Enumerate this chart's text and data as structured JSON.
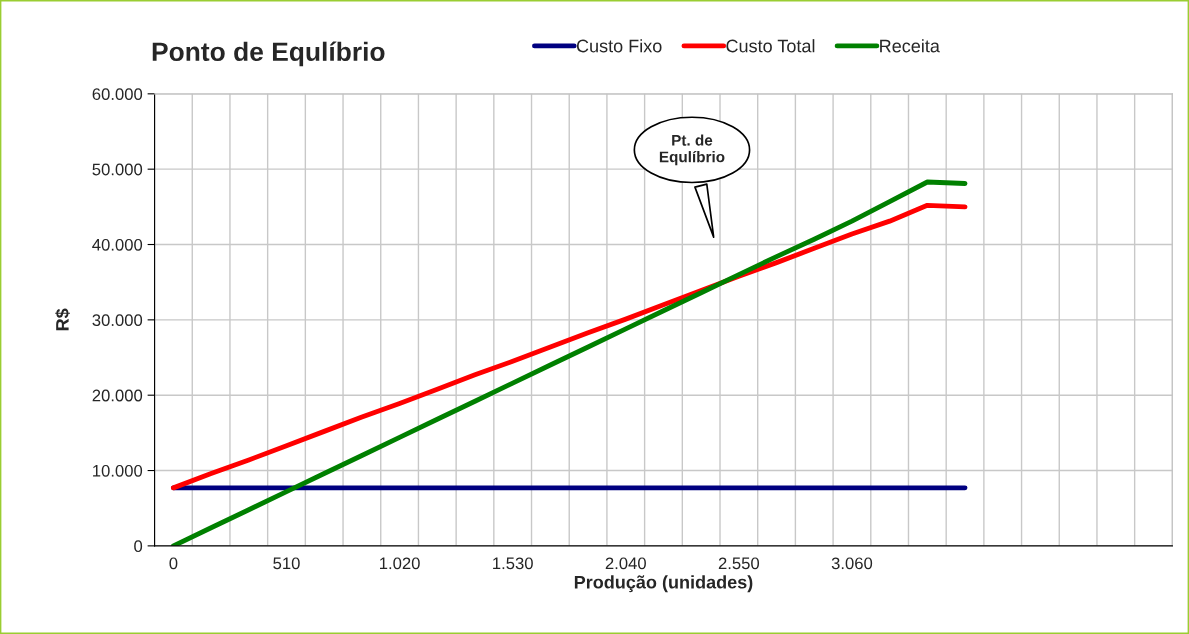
{
  "chart_data": {
    "type": "line",
    "title": "Ponto de Equlíbrio",
    "xlabel": "Produção (unidades)",
    "ylabel": "R$",
    "categories": [
      "0",
      null,
      null,
      "510",
      null,
      null,
      "1.020",
      null,
      null,
      "1.530",
      null,
      null,
      "2.040",
      null,
      null,
      "2.550",
      null,
      null,
      "3.060",
      null,
      null,
      null,
      null,
      null,
      null,
      null,
      null
    ],
    "series": [
      {
        "name": "Custo Fixo",
        "color": "#000080",
        "values": [
          7700,
          7700,
          7700,
          7700,
          7700,
          7700,
          7700,
          7700,
          7700,
          7700,
          7700,
          7700,
          7700,
          7700,
          7700,
          7700,
          7700,
          7700,
          7700,
          7700,
          7700,
          7700,
          null,
          null,
          null,
          null,
          null
        ]
      },
      {
        "name": "Custo Total",
        "color": "#ff0000",
        "values": [
          7700,
          9600,
          11400,
          13300,
          15200,
          17100,
          18900,
          20800,
          22700,
          24500,
          26400,
          28300,
          30100,
          32000,
          33900,
          35800,
          37600,
          39500,
          41400,
          43100,
          45200,
          45000,
          null,
          null,
          null,
          null,
          null
        ]
      },
      {
        "name": "Receita",
        "color": "#008000",
        "values": [
          0,
          2400,
          4800,
          7200,
          9600,
          12000,
          14400,
          16800,
          19200,
          21600,
          24000,
          26400,
          28800,
          31200,
          33600,
          36000,
          38400,
          40700,
          43100,
          45700,
          48300,
          48100,
          null,
          null,
          null,
          null,
          null
        ]
      }
    ],
    "ylim": [
      0,
      60000
    ],
    "yticks": [
      {
        "value": 0,
        "label": "0"
      },
      {
        "value": 10000,
        "label": "10.000"
      },
      {
        "value": 20000,
        "label": "20.000"
      },
      {
        "value": 30000,
        "label": "30.000"
      },
      {
        "value": 40000,
        "label": "40.000"
      },
      {
        "value": 50000,
        "label": "50.000"
      },
      {
        "value": 60000,
        "label": "60.000"
      }
    ],
    "annotations": [
      "Pt. de\nEqulíbrio"
    ],
    "grid": true,
    "legend": "top",
    "marker": "none",
    "line_style": "solid"
  }
}
